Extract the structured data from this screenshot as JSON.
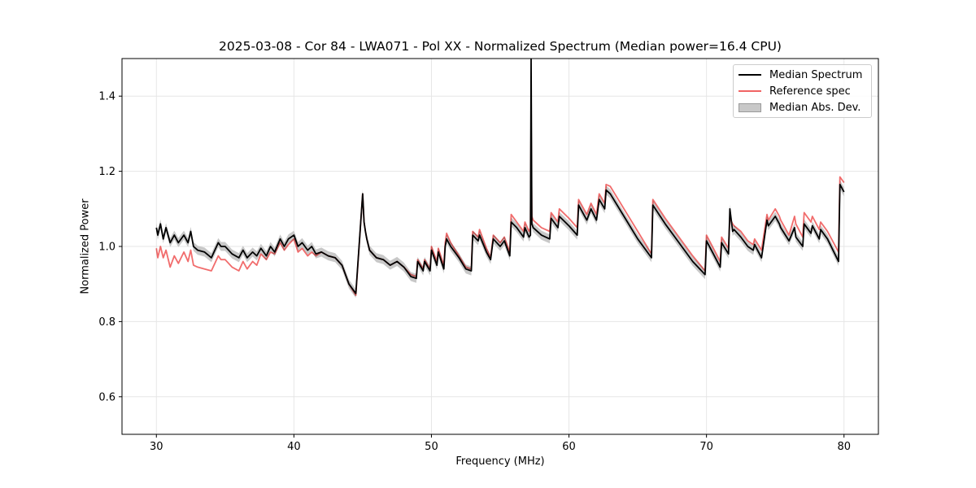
{
  "chart_data": {
    "type": "line",
    "title": "2025-03-08 - Cor 84 - LWA071 - Pol XX - Normalized Spectrum (Median power=16.4 CPU)",
    "xlabel": "Frequency (MHz)",
    "ylabel": "Normalized Power",
    "xlim": [
      27.5,
      82.5
    ],
    "ylim": [
      0.5,
      1.5
    ],
    "x_ticks": [
      30,
      40,
      50,
      60,
      70,
      80
    ],
    "x_tick_labels": [
      "30",
      "40",
      "50",
      "60",
      "70",
      "80"
    ],
    "y_ticks": [
      0.6,
      0.8,
      1.0,
      1.2,
      1.4
    ],
    "y_tick_labels": [
      "0.6",
      "0.8",
      "1.0",
      "1.2",
      "1.4"
    ],
    "grid": true,
    "legend_position": "top-right",
    "series": [
      {
        "name": "Median Spectrum",
        "color": "#000000",
        "x": [
          30.0,
          30.1,
          30.3,
          30.5,
          30.7,
          31.0,
          31.3,
          31.6,
          32.0,
          32.3,
          32.5,
          32.7,
          33.0,
          33.5,
          34.0,
          34.5,
          34.7,
          35.0,
          35.5,
          36.0,
          36.3,
          36.6,
          37.0,
          37.3,
          37.6,
          38.0,
          38.3,
          38.6,
          39.0,
          39.3,
          39.6,
          40.0,
          40.3,
          40.6,
          41.0,
          41.3,
          41.6,
          42.0,
          42.5,
          43.0,
          43.5,
          44.0,
          44.5,
          45.0,
          45.1,
          45.2,
          45.3,
          45.5,
          46.0,
          46.5,
          47.0,
          47.5,
          48.0,
          48.5,
          48.9,
          49.0,
          49.4,
          49.5,
          49.9,
          50.0,
          50.4,
          50.5,
          50.9,
          51.0,
          51.1,
          51.4,
          52.0,
          52.5,
          52.9,
          53.0,
          53.4,
          53.5,
          54.0,
          54.3,
          54.5,
          55.0,
          55.3,
          55.7,
          55.8,
          56.2,
          56.7,
          56.8,
          57.1,
          57.2,
          57.25,
          57.3,
          57.4,
          58.0,
          58.6,
          58.7,
          59.2,
          59.3,
          60.0,
          60.6,
          60.7,
          61.3,
          61.6,
          62.0,
          62.2,
          62.6,
          62.7,
          63.0,
          64.0,
          65.0,
          66.0,
          66.1,
          67.0,
          68.0,
          69.0,
          69.9,
          70.0,
          70.5,
          71.0,
          71.1,
          71.6,
          71.7,
          71.9,
          72.0,
          72.5,
          73.0,
          73.4,
          73.5,
          74.0,
          74.4,
          74.5,
          75.0,
          75.3,
          75.4,
          76.0,
          76.4,
          76.5,
          77.0,
          77.1,
          77.6,
          77.7,
          78.2,
          78.3,
          78.8,
          79.6,
          79.7,
          80.0
        ],
        "values": [
          1.05,
          1.03,
          1.06,
          1.02,
          1.05,
          1.01,
          1.03,
          1.01,
          1.03,
          1.01,
          1.04,
          1.0,
          0.99,
          0.985,
          0.97,
          1.01,
          1.0,
          1.0,
          0.98,
          0.97,
          0.99,
          0.97,
          0.985,
          0.975,
          0.995,
          0.975,
          1.0,
          0.985,
          1.02,
          1.0,
          1.02,
          1.03,
          1.0,
          1.01,
          0.99,
          1.0,
          0.98,
          0.985,
          0.975,
          0.97,
          0.95,
          0.9,
          0.875,
          1.14,
          1.065,
          1.04,
          1.02,
          0.99,
          0.97,
          0.965,
          0.95,
          0.96,
          0.945,
          0.92,
          0.915,
          0.96,
          0.935,
          0.96,
          0.935,
          0.99,
          0.95,
          0.985,
          0.94,
          1.0,
          1.02,
          1.0,
          0.97,
          0.94,
          0.935,
          1.03,
          1.015,
          1.03,
          0.985,
          0.965,
          1.02,
          1.0,
          1.015,
          0.975,
          1.065,
          1.05,
          1.025,
          1.05,
          1.025,
          1.03,
          1.5,
          1.06,
          1.05,
          1.03,
          1.02,
          1.075,
          1.05,
          1.08,
          1.055,
          1.03,
          1.11,
          1.07,
          1.1,
          1.07,
          1.125,
          1.1,
          1.15,
          1.14,
          1.08,
          1.02,
          0.97,
          1.11,
          1.06,
          1.01,
          0.96,
          0.925,
          1.015,
          0.98,
          0.945,
          1.01,
          0.98,
          1.1,
          1.04,
          1.045,
          1.025,
          1.0,
          0.99,
          1.005,
          0.97,
          1.07,
          1.055,
          1.08,
          1.06,
          1.05,
          1.015,
          1.05,
          1.025,
          1.0,
          1.06,
          1.035,
          1.055,
          1.02,
          1.045,
          1.02,
          0.96,
          1.165,
          1.145
        ]
      },
      {
        "name": "Reference spec",
        "color": "#f06464",
        "x": [
          30.0,
          30.1,
          30.3,
          30.5,
          30.7,
          31.0,
          31.3,
          31.6,
          32.0,
          32.3,
          32.5,
          32.7,
          33.0,
          33.5,
          34.0,
          34.5,
          34.7,
          35.0,
          35.5,
          36.0,
          36.3,
          36.6,
          37.0,
          37.3,
          37.6,
          38.0,
          38.3,
          38.6,
          39.0,
          39.3,
          39.6,
          40.0,
          40.3,
          40.6,
          41.0,
          41.3,
          41.6,
          42.0,
          42.5,
          43.0,
          43.5,
          44.0,
          44.5,
          45.0,
          45.1,
          45.2,
          45.3,
          45.5,
          46.0,
          46.5,
          47.0,
          47.5,
          48.0,
          48.5,
          48.9,
          49.0,
          49.4,
          49.5,
          49.9,
          50.0,
          50.4,
          50.5,
          50.9,
          51.0,
          51.1,
          51.4,
          52.0,
          52.5,
          52.9,
          53.0,
          53.4,
          53.5,
          54.0,
          54.3,
          54.5,
          55.0,
          55.3,
          55.7,
          55.8,
          56.2,
          56.7,
          56.8,
          57.1,
          57.2,
          57.25,
          57.3,
          57.4,
          58.0,
          58.6,
          58.7,
          59.2,
          59.3,
          60.0,
          60.6,
          60.7,
          61.3,
          61.6,
          62.0,
          62.2,
          62.6,
          62.7,
          63.0,
          64.0,
          65.0,
          66.0,
          66.1,
          67.0,
          68.0,
          69.0,
          69.9,
          70.0,
          70.5,
          71.0,
          71.1,
          71.6,
          71.7,
          71.9,
          72.0,
          72.5,
          73.0,
          73.4,
          73.5,
          74.0,
          74.4,
          74.5,
          75.0,
          75.3,
          75.4,
          76.0,
          76.4,
          76.5,
          77.0,
          77.1,
          77.6,
          77.7,
          78.2,
          78.3,
          78.8,
          79.6,
          79.7,
          80.0
        ],
        "values": [
          0.995,
          0.97,
          1.0,
          0.97,
          0.99,
          0.945,
          0.975,
          0.955,
          0.985,
          0.96,
          0.99,
          0.95,
          0.945,
          0.94,
          0.935,
          0.975,
          0.965,
          0.965,
          0.945,
          0.935,
          0.96,
          0.94,
          0.96,
          0.95,
          0.98,
          0.965,
          0.985,
          0.98,
          1.01,
          0.99,
          1.005,
          1.02,
          0.985,
          0.995,
          0.975,
          0.985,
          0.975,
          0.985,
          0.975,
          0.97,
          0.95,
          0.9,
          0.87,
          1.14,
          1.065,
          1.04,
          1.02,
          0.99,
          0.97,
          0.965,
          0.95,
          0.96,
          0.945,
          0.925,
          0.92,
          0.965,
          0.94,
          0.965,
          0.94,
          1.0,
          0.96,
          0.995,
          0.95,
          1.01,
          1.035,
          1.01,
          0.975,
          0.945,
          0.94,
          1.04,
          1.025,
          1.045,
          0.995,
          0.97,
          1.03,
          1.01,
          1.025,
          0.985,
          1.085,
          1.065,
          1.04,
          1.065,
          1.04,
          1.05,
          1.33,
          1.08,
          1.07,
          1.05,
          1.04,
          1.09,
          1.065,
          1.1,
          1.075,
          1.05,
          1.125,
          1.085,
          1.115,
          1.085,
          1.14,
          1.115,
          1.165,
          1.16,
          1.1,
          1.04,
          0.98,
          1.125,
          1.075,
          1.025,
          0.975,
          0.935,
          1.03,
          0.995,
          0.96,
          1.025,
          0.995,
          1.075,
          1.06,
          1.055,
          1.04,
          1.015,
          1.005,
          1.02,
          0.99,
          1.085,
          1.07,
          1.1,
          1.08,
          1.07,
          1.03,
          1.08,
          1.06,
          1.025,
          1.09,
          1.065,
          1.08,
          1.045,
          1.065,
          1.04,
          0.985,
          1.185,
          1.17
        ]
      }
    ],
    "band": {
      "name": "Median Abs. Dev.",
      "color": "#c8c8c8",
      "half_width": 0.012
    }
  }
}
